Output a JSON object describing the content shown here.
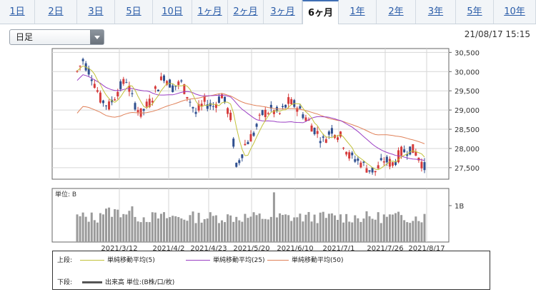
{
  "period_tabs": [
    {
      "label": "1日",
      "width": 49
    },
    {
      "label": "2日",
      "width": 59
    },
    {
      "label": "3日",
      "width": 53
    },
    {
      "label": "5日",
      "width": 53
    },
    {
      "label": "10日",
      "width": 55
    },
    {
      "label": "1ヶ月",
      "width": 50
    },
    {
      "label": "2ヶ月",
      "width": 50
    },
    {
      "label": "3ヶ月",
      "width": 54
    },
    {
      "label": "6ヶ月",
      "width": 51
    },
    {
      "label": "1年",
      "width": 53
    },
    {
      "label": "2年",
      "width": 55
    },
    {
      "label": "3年",
      "width": 56
    },
    {
      "label": "5年",
      "width": 53
    },
    {
      "label": "10年",
      "width": 59
    }
  ],
  "active_tab_index": 8,
  "chart_type_select": {
    "value": "日足"
  },
  "datetime": "21/08/17 15:15",
  "chart_data": [
    {
      "type": "candlestick",
      "y_ticks": [
        "30,500",
        "30,000",
        "29,500",
        "29,000",
        "28,500",
        "28,000",
        "27,500"
      ],
      "ylim": [
        27200,
        30600
      ],
      "x_tick_labels": [
        "2021/3/12",
        "2021/4/2",
        "2021/4/23",
        "2021/5/20",
        "2021/6/10",
        "2021/7/1",
        "2021/7/26",
        "2021/8/17"
      ],
      "grid": true,
      "series": [
        {
          "name": "単純移動平均(5)",
          "color": "#c2c23a"
        },
        {
          "name": "単純移動平均(25)",
          "color": "#9b3fc4"
        },
        {
          "name": "単純移動平均(50)",
          "color": "#e0825a"
        }
      ],
      "candle_colors": {
        "up": "#d63b3b",
        "down": "#2f4f8f"
      }
    },
    {
      "type": "bar",
      "unit_label": "単位: B",
      "y_tick": "1B",
      "color": "#9a9a9a"
    }
  ],
  "legend": {
    "upper_label": "上段:",
    "lower_label": "下段:",
    "volume_label": "出来高 単位:(B株/口/枚)"
  }
}
